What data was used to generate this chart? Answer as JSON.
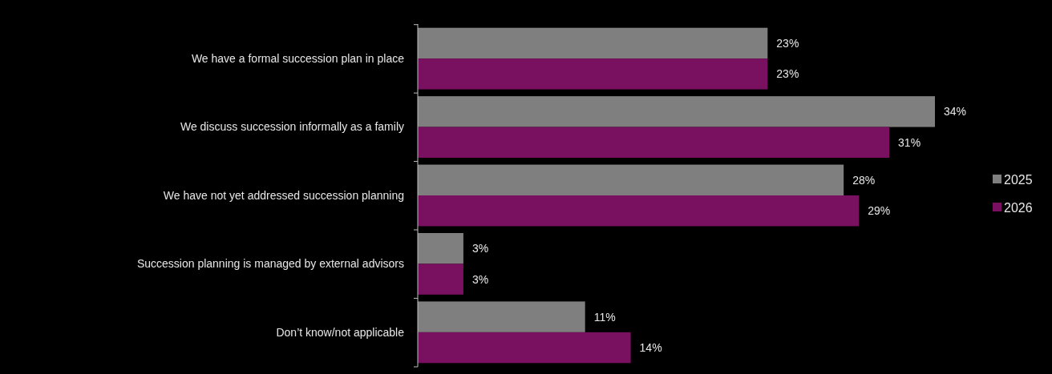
{
  "chart_data": {
    "type": "bar",
    "orientation": "horizontal",
    "categories": [
      "We have a formal succession plan in place",
      "We discuss succession informally as a family",
      "We have not yet addressed succession planning",
      "Succession planning is managed by external advisors",
      "Don’t know/not applicable"
    ],
    "series": [
      {
        "name": "2025",
        "color": "#7f7f7f",
        "values": [
          23,
          34,
          28,
          3,
          11
        ],
        "value_labels": [
          "23%",
          "34%",
          "28%",
          "3%",
          "11%"
        ]
      },
      {
        "name": "2026",
        "color": "#7a1160",
        "values": [
          23,
          31,
          29,
          3,
          14
        ],
        "value_labels": [
          "23%",
          "31%",
          "29%",
          "3%",
          "14%"
        ]
      }
    ],
    "legend": "right"
  }
}
